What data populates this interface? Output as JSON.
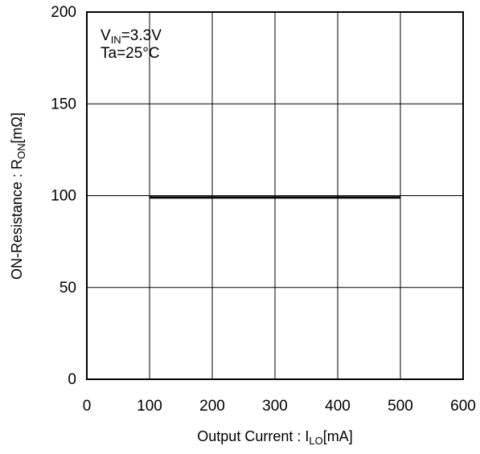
{
  "chart_data": {
    "type": "line",
    "title": "",
    "annotation": {
      "vin_prefix": "V",
      "vin_sub": "IN",
      "vin_value": "=3.3V",
      "ta": "Ta=25°C"
    },
    "xlabel": {
      "main": "Output Current : I",
      "sub": "LO",
      "unit": "[mA]"
    },
    "ylabel": {
      "main": "ON-Resistance : R",
      "sub": "ON",
      "unit": "[mΩ]"
    },
    "xlim": [
      0,
      600
    ],
    "ylim": [
      0,
      200
    ],
    "x_ticks": [
      0,
      100,
      200,
      300,
      400,
      500,
      600
    ],
    "y_ticks": [
      0,
      50,
      100,
      150,
      200
    ],
    "grid": true,
    "series": [
      {
        "x": [
          100,
          500
        ],
        "y": [
          99,
          99
        ]
      }
    ],
    "colors": {
      "axis": "#000000",
      "grid": "#000000",
      "line": "#000000"
    }
  }
}
